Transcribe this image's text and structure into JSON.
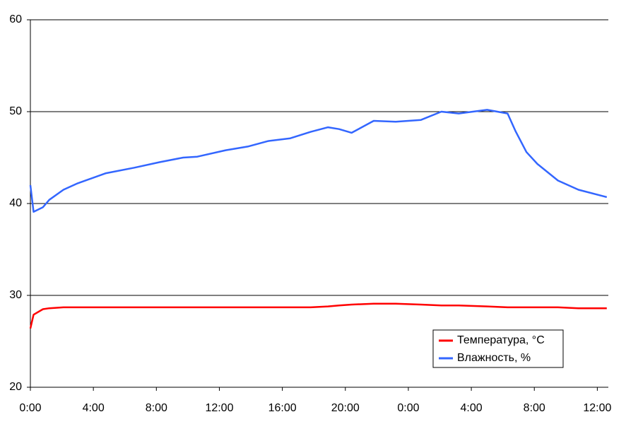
{
  "chart_data": {
    "type": "line",
    "x": [
      0,
      0.2,
      0.8,
      1.2,
      2.1,
      3,
      4.8,
      6.6,
      8.2,
      9.7,
      10.6,
      12.4,
      13.8,
      15.1,
      16.5,
      17.8,
      18.9,
      19.6,
      20.4,
      21.8,
      23.2,
      24.8,
      26.1,
      27.2,
      29,
      30.3,
      30.8,
      31.5,
      32.2,
      33.5,
      34.8,
      36.6
    ],
    "series": [
      {
        "name": "Температура, °C",
        "color": "#ff0000",
        "values": [
          26.4,
          27.9,
          28.5,
          28.6,
          28.7,
          28.7,
          28.7,
          28.7,
          28.7,
          28.7,
          28.7,
          28.7,
          28.7,
          28.7,
          28.7,
          28.7,
          28.8,
          28.9,
          29.0,
          29.1,
          29.1,
          29.0,
          28.9,
          28.9,
          28.8,
          28.7,
          28.7,
          28.7,
          28.7,
          28.7,
          28.6,
          28.6
        ]
      },
      {
        "name": "Влажность, %",
        "color": "#3366ff",
        "values": [
          42.0,
          39.1,
          39.6,
          40.4,
          41.5,
          42.2,
          43.3,
          43.9,
          44.5,
          45.0,
          45.1,
          45.8,
          46.2,
          46.8,
          47.1,
          47.8,
          48.3,
          48.1,
          47.7,
          49.0,
          48.9,
          49.1,
          50.0,
          49.8,
          50.2,
          49.8,
          47.9,
          45.6,
          44.3,
          42.5,
          41.5,
          40.7
        ]
      }
    ],
    "xlim": [
      0,
      36.7
    ],
    "xticks": [
      {
        "value": 0,
        "label": "0:00"
      },
      {
        "value": 4,
        "label": "4:00"
      },
      {
        "value": 8,
        "label": "8:00"
      },
      {
        "value": 12,
        "label": "12:00"
      },
      {
        "value": 16,
        "label": "16:00"
      },
      {
        "value": 20,
        "label": "20:00"
      },
      {
        "value": 24,
        "label": "0:00"
      },
      {
        "value": 28,
        "label": "4:00"
      },
      {
        "value": 32,
        "label": "8:00"
      },
      {
        "value": 36,
        "label": "12:00"
      }
    ],
    "ylim": [
      20,
      60
    ],
    "yticks": [
      20,
      30,
      40,
      50,
      60
    ],
    "grid": true,
    "legend": "lower-right"
  }
}
